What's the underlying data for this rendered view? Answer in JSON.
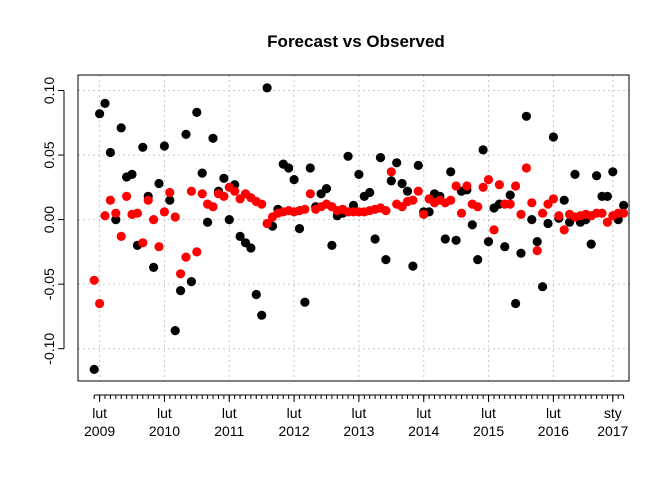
{
  "chart_data": {
    "type": "scatter",
    "title": "Forecast vs Observed",
    "xlabel": "",
    "ylabel": "",
    "xlim": [
      "2008-10",
      "2017-04"
    ],
    "ylim": [
      -0.125,
      0.112
    ],
    "grid": true,
    "legend": "none",
    "x_ticks": [
      {
        "month": "2009-02",
        "line1": "lut",
        "line2": "2009"
      },
      {
        "month": "2010-02",
        "line1": "lut",
        "line2": "2010"
      },
      {
        "month": "2011-02",
        "line1": "lut",
        "line2": "2011"
      },
      {
        "month": "2012-02",
        "line1": "lut",
        "line2": "2012"
      },
      {
        "month": "2013-02",
        "line1": "lut",
        "line2": "2013"
      },
      {
        "month": "2014-02",
        "line1": "lut",
        "line2": "2014"
      },
      {
        "month": "2015-02",
        "line1": "lut",
        "line2": "2015"
      },
      {
        "month": "2016-02",
        "line1": "lut",
        "line2": "2016"
      },
      {
        "month": "2017-01",
        "line1": "sty",
        "line2": "2017"
      }
    ],
    "y_ticks": [
      -0.1,
      -0.05,
      0.0,
      0.05,
      0.1
    ],
    "y_tick_labels": [
      "-0.10",
      "-0.05",
      "0.00",
      "0.05",
      "0.10"
    ],
    "x_months": [
      "2009-01",
      "2009-02",
      "2009-03",
      "2009-04",
      "2009-05",
      "2009-06",
      "2009-07",
      "2009-08",
      "2009-09",
      "2009-10",
      "2009-11",
      "2009-12",
      "2010-01",
      "2010-02",
      "2010-03",
      "2010-04",
      "2010-05",
      "2010-06",
      "2010-07",
      "2010-08",
      "2010-09",
      "2010-10",
      "2010-11",
      "2010-12",
      "2011-01",
      "2011-02",
      "2011-03",
      "2011-04",
      "2011-05",
      "2011-06",
      "2011-07",
      "2011-08",
      "2011-09",
      "2011-10",
      "2011-11",
      "2011-12",
      "2012-01",
      "2012-02",
      "2012-03",
      "2012-04",
      "2012-05",
      "2012-06",
      "2012-07",
      "2012-08",
      "2012-09",
      "2012-10",
      "2012-11",
      "2012-12",
      "2013-01",
      "2013-02",
      "2013-03",
      "2013-04",
      "2013-05",
      "2013-06",
      "2013-07",
      "2013-08",
      "2013-09",
      "2013-10",
      "2013-11",
      "2013-12",
      "2014-01",
      "2014-02",
      "2014-03",
      "2014-04",
      "2014-05",
      "2014-06",
      "2014-07",
      "2014-08",
      "2014-09",
      "2014-10",
      "2014-11",
      "2014-12",
      "2015-01",
      "2015-02",
      "2015-03",
      "2015-04",
      "2015-05",
      "2015-06",
      "2015-07",
      "2015-08",
      "2015-09",
      "2015-10",
      "2015-11",
      "2015-12",
      "2016-01",
      "2016-02",
      "2016-03",
      "2016-04",
      "2016-05",
      "2016-06",
      "2016-07",
      "2016-08",
      "2016-09",
      "2016-10",
      "2016-11",
      "2016-12",
      "2017-01",
      "2017-02",
      "2017-03"
    ],
    "series": [
      {
        "color": "#000000",
        "values": [
          -0.116,
          0.082,
          0.09,
          0.052,
          0.0,
          0.071,
          0.033,
          0.035,
          -0.02,
          0.056,
          0.018,
          -0.037,
          0.028,
          0.057,
          0.015,
          -0.086,
          -0.055,
          0.066,
          -0.048,
          0.083,
          0.036,
          -0.002,
          0.063,
          0.022,
          0.032,
          0.0,
          0.027,
          -0.013,
          -0.018,
          -0.022,
          -0.058,
          -0.074,
          0.102,
          -0.005,
          0.008,
          0.043,
          0.04,
          0.031,
          -0.007,
          -0.064,
          0.04,
          0.01,
          0.02,
          0.024,
          -0.02,
          0.003,
          0.005,
          0.049,
          0.011,
          0.035,
          0.018,
          0.021,
          -0.015,
          0.048,
          -0.031,
          0.03,
          0.044,
          0.028,
          0.022,
          -0.036,
          0.042,
          0.006,
          0.006,
          0.02,
          0.018,
          -0.015,
          0.037,
          -0.016,
          0.022,
          0.023,
          -0.004,
          -0.031,
          0.054,
          -0.017,
          0.009,
          0.012,
          -0.021,
          0.019,
          -0.065,
          -0.026,
          0.08,
          0.0,
          -0.017,
          -0.052,
          -0.003,
          0.064,
          0.001,
          0.015,
          -0.002,
          0.035,
          -0.002,
          0.0,
          -0.019,
          0.034,
          0.018,
          0.018,
          0.037,
          0.0,
          0.011
        ]
      },
      {
        "color": "#ff0000",
        "values": [
          -0.047,
          -0.065,
          0.003,
          0.015,
          0.005,
          -0.013,
          0.018,
          0.004,
          0.005,
          -0.018,
          0.015,
          0.0,
          -0.021,
          0.006,
          0.021,
          0.002,
          -0.042,
          -0.029,
          0.022,
          -0.025,
          0.02,
          0.012,
          0.01,
          0.02,
          0.018,
          0.025,
          0.022,
          0.016,
          0.02,
          0.017,
          0.014,
          0.012,
          -0.003,
          0.002,
          0.005,
          0.006,
          0.007,
          0.006,
          0.007,
          0.008,
          0.02,
          0.008,
          0.01,
          0.012,
          0.01,
          0.007,
          0.008,
          0.006,
          0.006,
          0.006,
          0.006,
          0.007,
          0.008,
          0.009,
          0.007,
          0.037,
          0.012,
          0.01,
          0.014,
          0.015,
          0.022,
          0.004,
          0.016,
          0.013,
          0.015,
          0.013,
          0.015,
          0.026,
          0.005,
          0.026,
          0.012,
          0.01,
          0.025,
          0.031,
          -0.008,
          0.027,
          0.012,
          0.012,
          0.026,
          0.004,
          0.04,
          0.013,
          -0.024,
          0.005,
          0.012,
          0.016,
          0.003,
          -0.008,
          0.004,
          0.002,
          0.003,
          0.004,
          0.003,
          0.005,
          0.005,
          -0.002,
          0.003,
          0.005,
          0.005
        ]
      }
    ]
  }
}
